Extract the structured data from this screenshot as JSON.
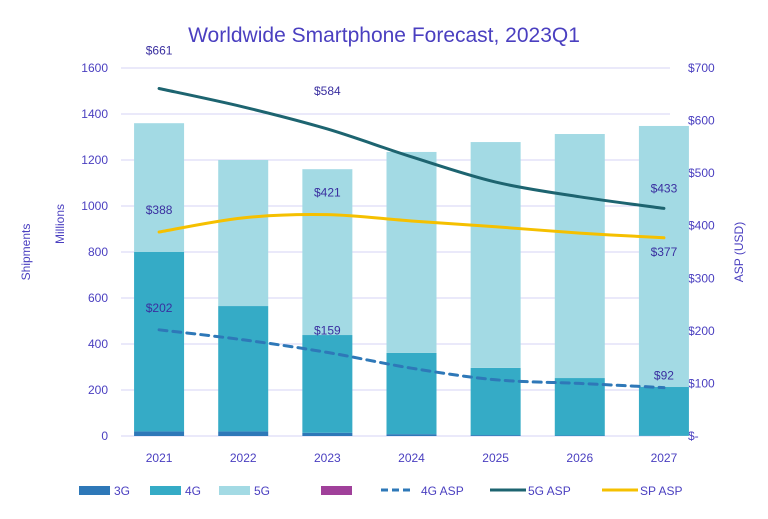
{
  "chart_data": {
    "type": "bar",
    "title": "Worldwide Smartphone Forecast, 2023Q1",
    "categories": [
      "2021",
      "2022",
      "2023",
      "2024",
      "2025",
      "2026",
      "2027"
    ],
    "ylabel_left": [
      "Shipments",
      "Millions"
    ],
    "ylabel_right": "ASP (USD)",
    "ylim_left": [
      0,
      1600
    ],
    "ylim_right": [
      0,
      700
    ],
    "left_ticks": [
      "0",
      "200",
      "400",
      "600",
      "800",
      "1000",
      "1200",
      "1400",
      "1600"
    ],
    "right_ticks": [
      "$-",
      "$100",
      "$200",
      "$300",
      "$400",
      "$500",
      "$600",
      "$700"
    ],
    "grid": true,
    "legend_position": "bottom",
    "bar_series": [
      {
        "name": "3G",
        "color": "#2e78b8",
        "values": [
          20,
          20,
          14,
          8,
          4,
          2,
          1
        ]
      },
      {
        "name": "4G",
        "color": "#35abc6",
        "values": [
          780,
          545,
          425,
          353,
          292,
          250,
          212
        ]
      },
      {
        "name": "5G",
        "color": "#a3dae4",
        "values": [
          560,
          635,
          721,
          874,
          982,
          1061,
          1135
        ]
      },
      {
        "name": "",
        "color": "#a0409a",
        "values": [
          0,
          0,
          0,
          0,
          0,
          0,
          0
        ]
      }
    ],
    "line_series": [
      {
        "name": "4G ASP",
        "color": "#2e78b8",
        "dash": true,
        "values": [
          202,
          183,
          159,
          129,
          107,
          100,
          92
        ],
        "labels": [
          "$202",
          null,
          "$159",
          null,
          null,
          null,
          "$92"
        ]
      },
      {
        "name": "5G ASP",
        "color": "#1d6470",
        "dash": false,
        "values": [
          661,
          626,
          584,
          531,
          483,
          455,
          433
        ],
        "labels": [
          "$661",
          null,
          "$584",
          null,
          null,
          null,
          "$433"
        ]
      },
      {
        "name": "SP ASP",
        "color": "#f5c000",
        "dash": false,
        "values": [
          388,
          415,
          421,
          409,
          398,
          386,
          377
        ],
        "labels": [
          "$388",
          null,
          "$421",
          null,
          null,
          null,
          "$377"
        ]
      }
    ]
  }
}
